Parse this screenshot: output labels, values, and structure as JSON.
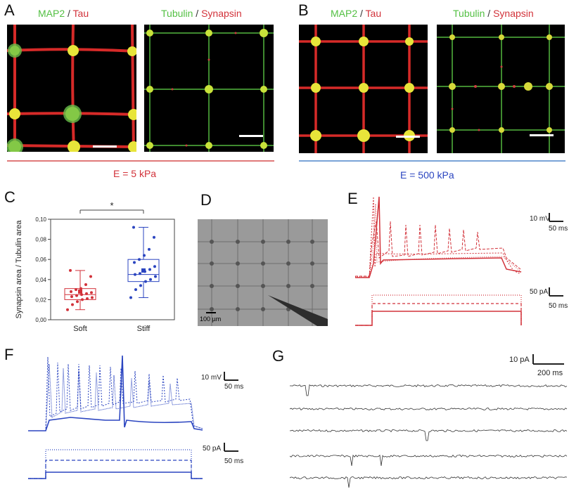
{
  "panels": {
    "A": {
      "letter": "A",
      "img1_label": {
        "a": "MAP2",
        "sep": "/",
        "b": "Tau"
      },
      "img2_label": {
        "a": "Tubulin",
        "sep": "/",
        "b": "Synapsin"
      }
    },
    "B": {
      "letter": "B",
      "img1_label": {
        "a": "MAP2",
        "sep": "/",
        "b": "Tau"
      },
      "img2_label": {
        "a": "Tubulin",
        "sep": "/",
        "b": "Synapsin"
      }
    },
    "C": {
      "letter": "C"
    },
    "D": {
      "letter": "D",
      "scale_label": "100 µm"
    },
    "E": {
      "letter": "E",
      "scale_v": "10 mV",
      "scale_t1": "50 ms",
      "scale_i": "50 pA",
      "scale_t2": "50 ms"
    },
    "F": {
      "letter": "F",
      "scale_v": "10 mV",
      "scale_t1": "50 ms",
      "scale_i": "50 pA",
      "scale_t2": "50 ms"
    },
    "G": {
      "letter": "G",
      "scale_i": "10 pA",
      "scale_t": "200 ms"
    }
  },
  "conditions": {
    "soft": "E = 5 kPa",
    "stiff": "E = 500 kPa"
  },
  "colors": {
    "soft": "#d2323a",
    "stiff": "#2b45c0",
    "green": "#53c043"
  },
  "chart_data": {
    "type": "box",
    "ylabel": "Synapsin area / Tubulin area",
    "categories": [
      "Soft",
      "Stiff"
    ],
    "ylim": [
      0.0,
      0.1
    ],
    "yticks": [
      "0,00",
      "0,02",
      "0,04",
      "0,06",
      "0,08",
      "0,10"
    ],
    "significance": "*",
    "series": [
      {
        "name": "Soft",
        "q1": 0.02,
        "median": 0.025,
        "q3": 0.031,
        "whisker_low": 0.01,
        "whisker_high": 0.049,
        "mean": 0.028,
        "points": [
          0.01,
          0.015,
          0.018,
          0.02,
          0.021,
          0.022,
          0.023,
          0.024,
          0.025,
          0.026,
          0.027,
          0.028,
          0.03,
          0.031,
          0.035,
          0.043,
          0.049
        ]
      },
      {
        "name": "Stiff",
        "q1": 0.038,
        "median": 0.045,
        "q3": 0.06,
        "whisker_low": 0.022,
        "whisker_high": 0.092,
        "mean": 0.049,
        "points": [
          0.022,
          0.03,
          0.034,
          0.038,
          0.04,
          0.043,
          0.045,
          0.046,
          0.048,
          0.05,
          0.053,
          0.057,
          0.06,
          0.064,
          0.07,
          0.082,
          0.092
        ]
      }
    ]
  }
}
